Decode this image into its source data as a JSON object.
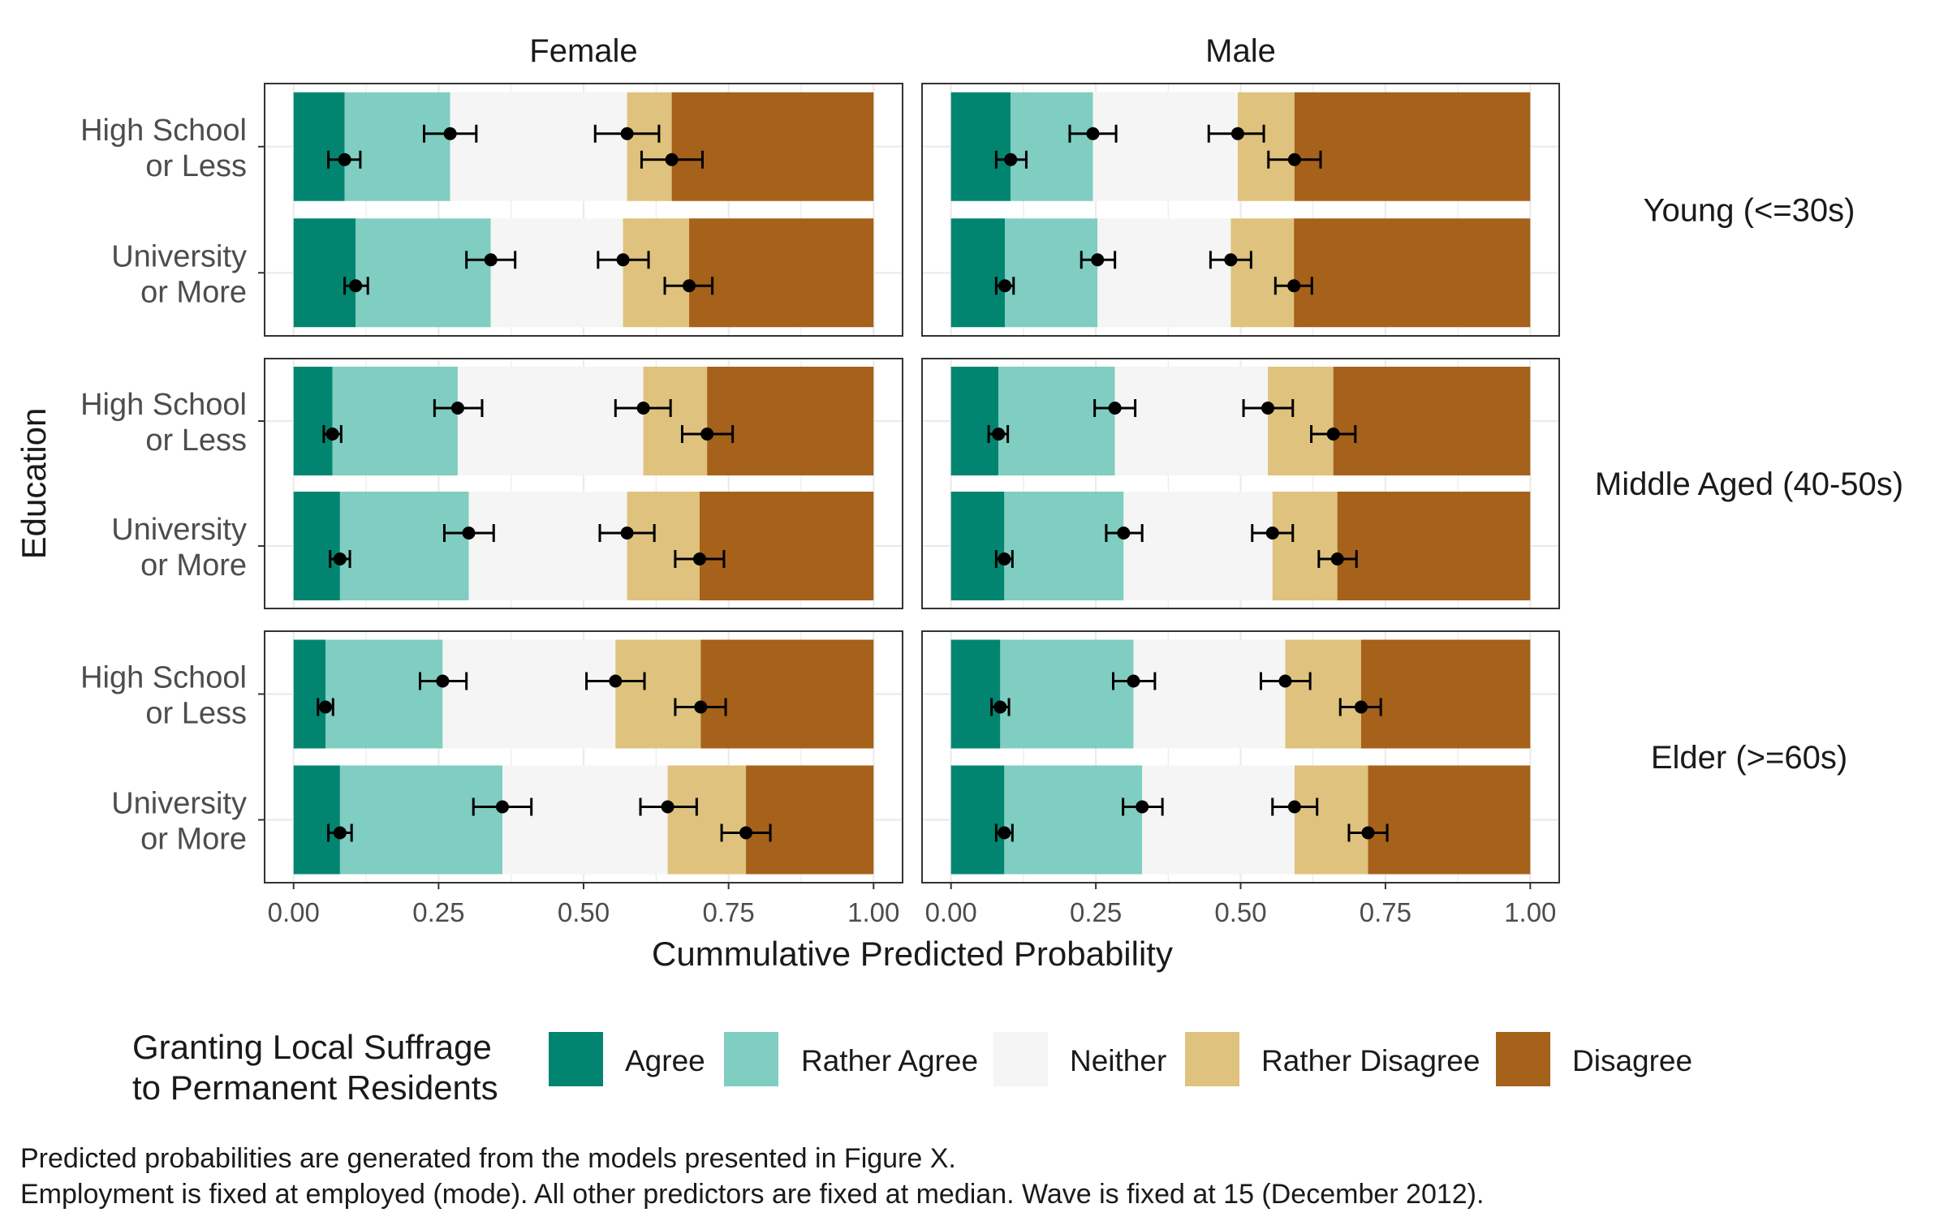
{
  "chart_data": {
    "type": "bar",
    "orientation": "horizontal",
    "stacked": true,
    "description": "Cumulative predicted probabilities with point estimates and error bars at each category boundary",
    "columns": [
      "Female",
      "Male"
    ],
    "rows": [
      "Young (<=30s)",
      "Middle Aged (40-50s)",
      "Elder (>=60s)"
    ],
    "categories": [
      "High School\nor Less",
      "University\nor More"
    ],
    "xlabel": "Cummulative Predicted Probability",
    "ylabel": "Education",
    "xlim": [
      0,
      1
    ],
    "xticks": [
      "0.00",
      "0.25",
      "0.50",
      "0.75",
      "1.00"
    ],
    "grid": true,
    "legend": {
      "title": "Granting Local Suffrage\nto Permanent Residents",
      "position": "bottom",
      "entries": [
        {
          "label": "Agree",
          "color": "#018571"
        },
        {
          "label": "Rather Agree",
          "color": "#80cdc1"
        },
        {
          "label": "Neither",
          "color": "#f5f5f5"
        },
        {
          "label": "Rather Disagree",
          "color": "#dfc27d"
        },
        {
          "label": "Disagree",
          "color": "#a6611a"
        }
      ]
    },
    "panels": [
      {
        "column": "Female",
        "row": "Young (<=30s)",
        "bars": [
          {
            "category": "High School\nor Less",
            "cumulative": [
              0.088,
              0.27,
              0.575,
              0.652
            ],
            "ci": [
              [
                0.06,
                0.115
              ],
              [
                0.225,
                0.315
              ],
              [
                0.52,
                0.63
              ],
              [
                0.6,
                0.705
              ]
            ]
          },
          {
            "category": "University\nor More",
            "cumulative": [
              0.107,
              0.34,
              0.568,
              0.682
            ],
            "ci": [
              [
                0.088,
                0.128
              ],
              [
                0.298,
                0.382
              ],
              [
                0.525,
                0.612
              ],
              [
                0.64,
                0.722
              ]
            ]
          }
        ]
      },
      {
        "column": "Male",
        "row": "Young (<=30s)",
        "bars": [
          {
            "category": "High School\nor Less",
            "cumulative": [
              0.103,
              0.245,
              0.495,
              0.593
            ],
            "ci": [
              [
                0.078,
                0.13
              ],
              [
                0.205,
                0.285
              ],
              [
                0.445,
                0.54
              ],
              [
                0.548,
                0.638
              ]
            ]
          },
          {
            "category": "University\nor More",
            "cumulative": [
              0.093,
              0.253,
              0.483,
              0.592
            ],
            "ci": [
              [
                0.078,
                0.108
              ],
              [
                0.225,
                0.283
              ],
              [
                0.448,
                0.518
              ],
              [
                0.56,
                0.623
              ]
            ]
          }
        ]
      },
      {
        "column": "Female",
        "row": "Middle Aged (40-50s)",
        "bars": [
          {
            "category": "High School\nor Less",
            "cumulative": [
              0.067,
              0.283,
              0.603,
              0.713
            ],
            "ci": [
              [
                0.052,
                0.082
              ],
              [
                0.243,
                0.325
              ],
              [
                0.555,
                0.65
              ],
              [
                0.67,
                0.757
              ]
            ]
          },
          {
            "category": "University\nor More",
            "cumulative": [
              0.08,
              0.302,
              0.575,
              0.7
            ],
            "ci": [
              [
                0.063,
                0.097
              ],
              [
                0.26,
                0.345
              ],
              [
                0.528,
                0.622
              ],
              [
                0.658,
                0.742
              ]
            ]
          }
        ]
      },
      {
        "column": "Male",
        "row": "Middle Aged (40-50s)",
        "bars": [
          {
            "category": "High School\nor Less",
            "cumulative": [
              0.082,
              0.283,
              0.547,
              0.66
            ],
            "ci": [
              [
                0.065,
                0.098
              ],
              [
                0.248,
                0.318
              ],
              [
                0.505,
                0.59
              ],
              [
                0.622,
                0.698
              ]
            ]
          },
          {
            "category": "University\nor More",
            "cumulative": [
              0.092,
              0.298,
              0.555,
              0.667
            ],
            "ci": [
              [
                0.078,
                0.106
              ],
              [
                0.268,
                0.33
              ],
              [
                0.52,
                0.59
              ],
              [
                0.635,
                0.7
              ]
            ]
          }
        ]
      },
      {
        "column": "Female",
        "row": "Elder (>=60s)",
        "bars": [
          {
            "category": "High School\nor Less",
            "cumulative": [
              0.055,
              0.257,
              0.555,
              0.702
            ],
            "ci": [
              [
                0.042,
                0.068
              ],
              [
                0.218,
                0.298
              ],
              [
                0.505,
                0.605
              ],
              [
                0.658,
                0.745
              ]
            ]
          },
          {
            "category": "University\nor More",
            "cumulative": [
              0.08,
              0.36,
              0.645,
              0.78
            ],
            "ci": [
              [
                0.06,
                0.1
              ],
              [
                0.31,
                0.41
              ],
              [
                0.598,
                0.695
              ],
              [
                0.738,
                0.822
              ]
            ]
          }
        ]
      },
      {
        "column": "Male",
        "row": "Elder (>=60s)",
        "bars": [
          {
            "category": "High School\nor Less",
            "cumulative": [
              0.085,
              0.315,
              0.577,
              0.708
            ],
            "ci": [
              [
                0.07,
                0.1
              ],
              [
                0.28,
                0.352
              ],
              [
                0.535,
                0.62
              ],
              [
                0.672,
                0.742
              ]
            ]
          },
          {
            "category": "University\nor More",
            "cumulative": [
              0.092,
              0.33,
              0.593,
              0.72
            ],
            "ci": [
              [
                0.078,
                0.106
              ],
              [
                0.297,
                0.365
              ],
              [
                0.555,
                0.632
              ],
              [
                0.687,
                0.753
              ]
            ]
          }
        ]
      }
    ]
  },
  "caption": [
    "Predicted probabilities are generated from the models presented in Figure X.",
    "Employment is fixed at employed (mode). All other predictors are fixed at median. Wave is fixed at 15 (December 2012)."
  ]
}
